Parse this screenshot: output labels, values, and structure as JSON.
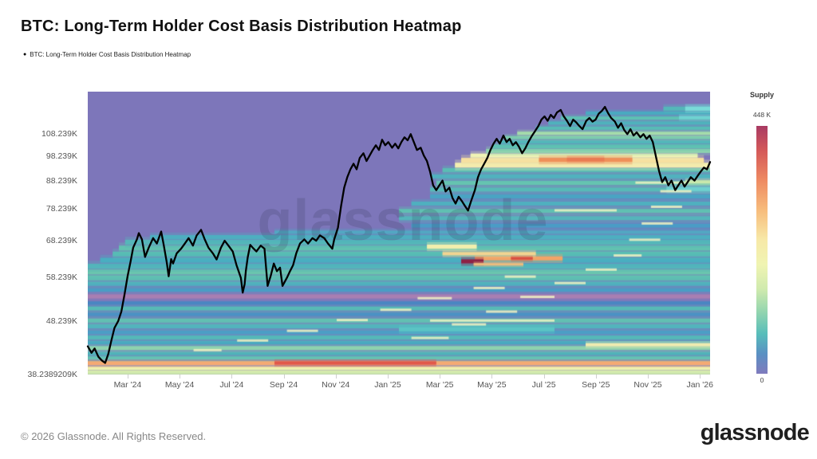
{
  "header": {
    "title": "BTC: Long-Term Holder Cost Basis Distribution Heatmap",
    "legend": {
      "marker": "●",
      "label": "BTC: Long-Term Holder Cost Basis Distribution Heatmap"
    }
  },
  "watermark": "glassnode",
  "footer": {
    "copyright": "© 2026 Glassnode. All Rights Reserved.",
    "brand": "glassnode"
  },
  "chart_data": {
    "type": "heatmap",
    "title": "BTC: Long-Term Holder Cost Basis Distribution Heatmap",
    "plot_bg": "#7d76ba",
    "x_axis": {
      "labels": [
        "Mar '24",
        "May '24",
        "Jul '24",
        "Sep '24",
        "Nov '24",
        "Jan '25",
        "Mar '25",
        "May '25",
        "Jul '25",
        "Sep '25",
        "Nov '25",
        "Jan '26"
      ],
      "start_frac": 0.064,
      "step_frac": 0.0836
    },
    "y_axis": {
      "scale": "log",
      "min_k": 38.2389209,
      "max_k": 130,
      "ticks": [
        [
          108.239,
          "108.239K"
        ],
        [
          98.239,
          "98.239K"
        ],
        [
          88.239,
          "88.239K"
        ],
        [
          78.239,
          "78.239K"
        ],
        [
          68.239,
          "68.239K"
        ],
        [
          58.239,
          "58.239K"
        ],
        [
          48.239,
          "48.239K"
        ],
        [
          38.2389209,
          "38.2389209K"
        ]
      ]
    },
    "colorbar": {
      "title": "Supply",
      "max_label": "448 K",
      "min_label": "0",
      "gradient": [
        [
          "0%",
          "#a93a63"
        ],
        [
          "10%",
          "#d45959"
        ],
        [
          "22%",
          "#ee8a62"
        ],
        [
          "34%",
          "#f7bc7c"
        ],
        [
          "46%",
          "#f7e9a8"
        ],
        [
          "56%",
          "#f0f4b2"
        ],
        [
          "66%",
          "#cfeaae"
        ],
        [
          "75%",
          "#93d5af"
        ],
        [
          "84%",
          "#57bdba"
        ],
        [
          "92%",
          "#5a90c3"
        ],
        [
          "100%",
          "#7f7bbd"
        ]
      ]
    },
    "bands": [
      [
        38.6,
        0,
        1,
        "#cfe9ad",
        5
      ],
      [
        39.3,
        0,
        1,
        "#eef2b0",
        4
      ],
      [
        40.2,
        0,
        1,
        "#f5a973",
        5
      ],
      [
        41.1,
        0,
        1,
        "#67c3b4",
        4
      ],
      [
        41.9,
        0,
        1,
        "#4fb2bb",
        4
      ],
      [
        42.9,
        0,
        1,
        "#8ed2ae",
        5
      ],
      [
        43.9,
        0,
        1,
        "#49a9c0",
        4
      ],
      [
        44.9,
        0,
        1,
        "#55b8b8",
        5
      ],
      [
        45.9,
        0,
        1,
        "#4b9ec6",
        4
      ],
      [
        47.1,
        0,
        1,
        "#52b4bd",
        5
      ],
      [
        48.3,
        0,
        1,
        "#62c0b2",
        5
      ],
      [
        49.6,
        0,
        1,
        "#4a92c5",
        4
      ],
      [
        50.9,
        0,
        1,
        "#57bab6",
        5
      ],
      [
        52.1,
        0,
        1,
        "#4a86c2",
        4
      ],
      [
        53.6,
        0,
        1,
        "#a87fb2",
        5
      ],
      [
        55.1,
        0,
        1,
        "#4a9dc4",
        4
      ],
      [
        56.6,
        0,
        1,
        "#50b0bf",
        5
      ],
      [
        58.1,
        0,
        1,
        "#5dbfb2",
        6
      ],
      [
        59.6,
        0,
        1,
        "#6ac5ae",
        6
      ],
      [
        61.1,
        0,
        1,
        "#53b5bb",
        6
      ],
      [
        62.7,
        0.02,
        1,
        "#49aec1",
        6
      ],
      [
        64.4,
        0.04,
        1,
        "#57bcb5",
        6
      ],
      [
        66.1,
        0.05,
        1,
        "#62c2b0",
        6
      ],
      [
        67.8,
        0.06,
        1,
        "#55b7b9",
        6
      ],
      [
        69.3,
        0.1,
        1,
        "#4dafc0",
        5
      ],
      [
        70.8,
        0.3,
        1,
        "#52a7c3",
        4
      ],
      [
        72.8,
        0.52,
        1,
        "#4a9cc6",
        5
      ],
      [
        75.2,
        0.5,
        1,
        "#55b5bb",
        5
      ],
      [
        77.6,
        0.5,
        1,
        "#60c0b2",
        5
      ],
      [
        80.1,
        0.52,
        1,
        "#4fb0bf",
        5
      ],
      [
        82.6,
        0.55,
        1,
        "#49a4c3",
        5
      ],
      [
        85.1,
        0.55,
        1,
        "#57bab7",
        5
      ],
      [
        87.6,
        0.56,
        1,
        "#65c4b0",
        5
      ],
      [
        90.1,
        0.55,
        1,
        "#50b2be",
        5
      ],
      [
        92.6,
        0.57,
        1,
        "#5abdb4",
        5
      ],
      [
        94.6,
        0.59,
        1,
        "#f3eeb0",
        6
      ],
      [
        96.6,
        0.6,
        0.99,
        "#f6e0a0",
        6
      ],
      [
        98.6,
        0.615,
        0.98,
        "#eff3b5",
        5
      ],
      [
        100.6,
        0.64,
        1,
        "#8ed4ae",
        5
      ],
      [
        102.6,
        0.65,
        1,
        "#5fc1b2",
        5
      ],
      [
        104.6,
        0.66,
        1,
        "#52b6bb",
        4
      ],
      [
        106.6,
        0.67,
        1,
        "#7bccae",
        4
      ],
      [
        108.6,
        0.69,
        1,
        "#a5dcab",
        4
      ],
      [
        111,
        0.72,
        1,
        "#57bcb6",
        4
      ],
      [
        113.5,
        0.74,
        1,
        "#4fb2bd",
        4
      ],
      [
        116,
        0.76,
        1,
        "#5ec1b3",
        4
      ],
      [
        118.5,
        0.8,
        1,
        "#49aac1",
        4
      ],
      [
        120.8,
        0.925,
        1,
        "#54b8b9",
        5
      ]
    ],
    "hotspots": [
      [
        96.8,
        0.725,
        0.875,
        "#ef9059",
        5
      ],
      [
        97,
        0.77,
        0.83,
        "#ea7a52",
        4
      ],
      [
        63.2,
        0.622,
        0.763,
        "#f2a468",
        5
      ],
      [
        63.3,
        0.68,
        0.715,
        "#d94f41",
        4
      ],
      [
        62.4,
        0.6,
        0.636,
        "#8e2145",
        5
      ],
      [
        64.5,
        0.57,
        0.72,
        "#f2d491",
        4
      ],
      [
        61.6,
        0.62,
        0.7,
        "#edbd7e",
        3
      ],
      [
        66.5,
        0.545,
        0.625,
        "#f2efad",
        5
      ],
      [
        40.2,
        0.3,
        0.56,
        "#e2574a",
        4
      ],
      [
        85.3,
        0.93,
        1,
        "#6fd0cf",
        5
      ],
      [
        116.2,
        0.95,
        1,
        "#6fd2d2",
        4
      ],
      [
        120.8,
        0.96,
        1,
        "#7adbd9",
        5
      ],
      [
        88,
        0.96,
        1,
        "#c8e8ac",
        4
      ],
      [
        46.5,
        0.5,
        0.75,
        "#5bc4c4",
        5
      ],
      [
        43.5,
        0.8,
        1,
        "#f0ecb0",
        4
      ]
    ],
    "streak_color": "#f0f2c2",
    "streaks": [
      [
        42.5,
        0.17,
        0.215
      ],
      [
        44.3,
        0.24,
        0.29
      ],
      [
        46.2,
        0.32,
        0.37
      ],
      [
        48.4,
        0.4,
        0.45
      ],
      [
        50.6,
        0.47,
        0.52
      ],
      [
        53.2,
        0.53,
        0.585
      ],
      [
        44.8,
        0.52,
        0.58
      ],
      [
        47.5,
        0.585,
        0.64
      ],
      [
        50.2,
        0.64,
        0.69
      ],
      [
        53.5,
        0.695,
        0.75
      ],
      [
        56.8,
        0.75,
        0.8
      ],
      [
        60.2,
        0.8,
        0.85
      ],
      [
        64,
        0.845,
        0.89
      ],
      [
        68.5,
        0.87,
        0.92
      ],
      [
        73.5,
        0.89,
        0.94
      ],
      [
        79,
        0.905,
        0.955
      ],
      [
        84.5,
        0.92,
        0.97
      ],
      [
        55.6,
        0.62,
        0.67
      ],
      [
        58.4,
        0.67,
        0.72
      ],
      [
        77.8,
        0.75,
        0.85
      ],
      [
        87.7,
        0.88,
        0.96
      ],
      [
        48.3,
        0.55,
        0.75
      ]
    ],
    "price_line": {
      "name": "BTC price",
      "color": "#000000",
      "width": 2.3,
      "points": [
        [
          0,
          43.2
        ],
        [
          0.006,
          42
        ],
        [
          0.011,
          42.8
        ],
        [
          0.017,
          41.3
        ],
        [
          0.023,
          40.6
        ],
        [
          0.028,
          40.2
        ],
        [
          0.033,
          41.8
        ],
        [
          0.038,
          44.3
        ],
        [
          0.043,
          46.8
        ],
        [
          0.049,
          48.2
        ],
        [
          0.054,
          50.2
        ],
        [
          0.059,
          54
        ],
        [
          0.064,
          58.5
        ],
        [
          0.069,
          62.5
        ],
        [
          0.073,
          66.2
        ],
        [
          0.079,
          68.6
        ],
        [
          0.082,
          70.5
        ],
        [
          0.087,
          68.6
        ],
        [
          0.092,
          63.6
        ],
        [
          0.098,
          66.2
        ],
        [
          0.105,
          69
        ],
        [
          0.111,
          67.4
        ],
        [
          0.118,
          71
        ],
        [
          0.122,
          67
        ],
        [
          0.127,
          62
        ],
        [
          0.13,
          58.5
        ],
        [
          0.134,
          63
        ],
        [
          0.137,
          61.8
        ],
        [
          0.143,
          64.6
        ],
        [
          0.15,
          65.9
        ],
        [
          0.156,
          67.4
        ],
        [
          0.162,
          69
        ],
        [
          0.169,
          66.8
        ],
        [
          0.175,
          69.8
        ],
        [
          0.182,
          71.5
        ],
        [
          0.188,
          68.6
        ],
        [
          0.194,
          66.2
        ],
        [
          0.201,
          64.6
        ],
        [
          0.207,
          62.9
        ],
        [
          0.214,
          66.2
        ],
        [
          0.22,
          68.2
        ],
        [
          0.226,
          66.8
        ],
        [
          0.233,
          65.1
        ],
        [
          0.239,
          61.4
        ],
        [
          0.246,
          58.1
        ],
        [
          0.249,
          54.5
        ],
        [
          0.252,
          56.5
        ],
        [
          0.254,
          59.8
        ],
        [
          0.257,
          63.5
        ],
        [
          0.261,
          67
        ],
        [
          0.265,
          66.2
        ],
        [
          0.271,
          65.1
        ],
        [
          0.278,
          66.8
        ],
        [
          0.284,
          65.9
        ],
        [
          0.289,
          56.1
        ],
        [
          0.294,
          58.6
        ],
        [
          0.299,
          61.8
        ],
        [
          0.304,
          59.8
        ],
        [
          0.309,
          60.7
        ],
        [
          0.313,
          56.1
        ],
        [
          0.32,
          58.1
        ],
        [
          0.325,
          59.8
        ],
        [
          0.33,
          61.4
        ],
        [
          0.335,
          64.6
        ],
        [
          0.341,
          67.4
        ],
        [
          0.348,
          68.6
        ],
        [
          0.354,
          67.4
        ],
        [
          0.361,
          69
        ],
        [
          0.367,
          68.2
        ],
        [
          0.373,
          69.8
        ],
        [
          0.38,
          69
        ],
        [
          0.386,
          67.4
        ],
        [
          0.393,
          65.9
        ],
        [
          0.396,
          68.6
        ],
        [
          0.402,
          72.2
        ],
        [
          0.407,
          79.3
        ],
        [
          0.412,
          85.8
        ],
        [
          0.417,
          89.8
        ],
        [
          0.422,
          92.9
        ],
        [
          0.427,
          95.2
        ],
        [
          0.432,
          92.9
        ],
        [
          0.437,
          97.6
        ],
        [
          0.443,
          99.6
        ],
        [
          0.448,
          96.3
        ],
        [
          0.453,
          98.6
        ],
        [
          0.458,
          101
        ],
        [
          0.463,
          103.1
        ],
        [
          0.468,
          101
        ],
        [
          0.473,
          105.6
        ],
        [
          0.478,
          103.1
        ],
        [
          0.483,
          104.5
        ],
        [
          0.489,
          102
        ],
        [
          0.494,
          103.8
        ],
        [
          0.499,
          101.7
        ],
        [
          0.504,
          104.5
        ],
        [
          0.509,
          106.7
        ],
        [
          0.514,
          105.3
        ],
        [
          0.519,
          108.2
        ],
        [
          0.524,
          104.5
        ],
        [
          0.529,
          101
        ],
        [
          0.535,
          102
        ],
        [
          0.54,
          98.6
        ],
        [
          0.545,
          96.3
        ],
        [
          0.55,
          92
        ],
        [
          0.555,
          86.7
        ],
        [
          0.56,
          84.9
        ],
        [
          0.565,
          86.7
        ],
        [
          0.57,
          88.5
        ],
        [
          0.575,
          84.4
        ],
        [
          0.581,
          85.8
        ],
        [
          0.586,
          82.1
        ],
        [
          0.591,
          80.1
        ],
        [
          0.596,
          82.5
        ],
        [
          0.601,
          81
        ],
        [
          0.606,
          79.3
        ],
        [
          0.611,
          77.7
        ],
        [
          0.616,
          81
        ],
        [
          0.622,
          84.9
        ],
        [
          0.627,
          89.8
        ],
        [
          0.632,
          92.9
        ],
        [
          0.637,
          95.2
        ],
        [
          0.642,
          97.6
        ],
        [
          0.647,
          101
        ],
        [
          0.652,
          103.8
        ],
        [
          0.657,
          106
        ],
        [
          0.662,
          103.8
        ],
        [
          0.668,
          107.5
        ],
        [
          0.673,
          104.5
        ],
        [
          0.678,
          106
        ],
        [
          0.683,
          103.1
        ],
        [
          0.688,
          104.5
        ],
        [
          0.693,
          102.4
        ],
        [
          0.698,
          99.6
        ],
        [
          0.703,
          101.7
        ],
        [
          0.708,
          104.5
        ],
        [
          0.714,
          107.5
        ],
        [
          0.719,
          109.7
        ],
        [
          0.724,
          112
        ],
        [
          0.729,
          115.2
        ],
        [
          0.734,
          116.8
        ],
        [
          0.739,
          114.6
        ],
        [
          0.744,
          117.6
        ],
        [
          0.749,
          116
        ],
        [
          0.754,
          118.8
        ],
        [
          0.76,
          120.1
        ],
        [
          0.765,
          116.8
        ],
        [
          0.77,
          114.6
        ],
        [
          0.775,
          112
        ],
        [
          0.78,
          115.2
        ],
        [
          0.785,
          113.8
        ],
        [
          0.79,
          112
        ],
        [
          0.795,
          110.5
        ],
        [
          0.801,
          114.6
        ],
        [
          0.806,
          116
        ],
        [
          0.811,
          114.2
        ],
        [
          0.816,
          115.2
        ],
        [
          0.821,
          118.2
        ],
        [
          0.826,
          119.6
        ],
        [
          0.831,
          121.7
        ],
        [
          0.836,
          118.5
        ],
        [
          0.841,
          116
        ],
        [
          0.847,
          114.2
        ],
        [
          0.852,
          111.2
        ],
        [
          0.857,
          113.4
        ],
        [
          0.862,
          110.1
        ],
        [
          0.867,
          108.2
        ],
        [
          0.872,
          110.5
        ],
        [
          0.877,
          107.5
        ],
        [
          0.882,
          109
        ],
        [
          0.888,
          106.7
        ],
        [
          0.893,
          108.2
        ],
        [
          0.898,
          106
        ],
        [
          0.903,
          107.5
        ],
        [
          0.908,
          104.5
        ],
        [
          0.913,
          98.2
        ],
        [
          0.918,
          92.3
        ],
        [
          0.923,
          87.9
        ],
        [
          0.928,
          89.8
        ],
        [
          0.933,
          86.7
        ],
        [
          0.938,
          88.5
        ],
        [
          0.944,
          84.9
        ],
        [
          0.949,
          86.7
        ],
        [
          0.954,
          88.5
        ],
        [
          0.959,
          86.2
        ],
        [
          0.964,
          87.9
        ],
        [
          0.969,
          89.8
        ],
        [
          0.975,
          88.5
        ],
        [
          0.98,
          90.3
        ],
        [
          0.985,
          92
        ],
        [
          0.99,
          93.6
        ],
        [
          0.995,
          92.9
        ],
        [
          1,
          95.9
        ]
      ]
    }
  }
}
